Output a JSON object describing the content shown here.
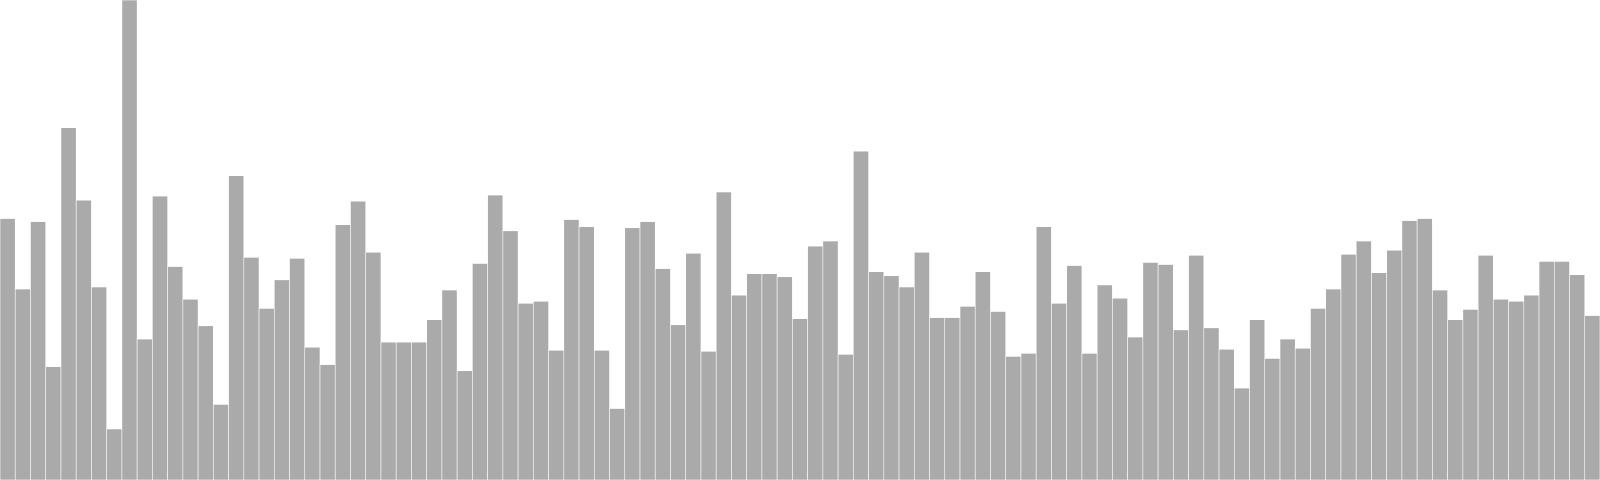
{
  "chart_data": {
    "type": "bar",
    "color": "#aaaaaa",
    "ylim": [
      0,
      470
    ],
    "values": [
      256,
      187,
      253,
      111,
      345,
      274,
      189,
      50,
      470,
      138,
      278,
      209,
      177,
      151,
      74,
      298,
      218,
      168,
      196,
      217,
      130,
      113,
      250,
      273,
      223,
      135,
      135,
      135,
      157,
      186,
      107,
      212,
      279,
      244,
      173,
      175,
      127,
      255,
      248,
      127,
      70,
      247,
      253,
      207,
      152,
      222,
      126,
      282,
      181,
      202,
      202,
      199,
      158,
      229,
      234,
      123,
      322,
      204,
      200,
      189,
      223,
      159,
      159,
      170,
      204,
      165,
      121,
      124,
      248,
      173,
      210,
      124,
      191,
      178,
      140,
      213,
      211,
      147,
      220,
      149,
      128,
      90,
      157,
      119,
      138,
      129,
      168,
      187,
      221,
      234,
      203,
      225,
      254,
      256,
      186,
      157,
      167,
      220,
      177,
      175,
      181,
      214,
      214,
      201,
      161
    ]
  }
}
